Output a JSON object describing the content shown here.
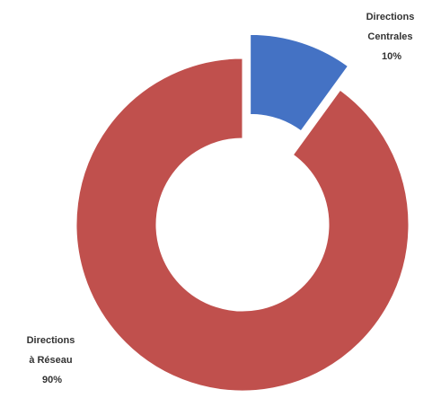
{
  "chart_data": {
    "type": "pie",
    "variant": "donut",
    "title": "",
    "legend": "none",
    "slices": [
      {
        "label_lines": [
          "Directions",
          "Centrales"
        ],
        "value": 10,
        "value_text": "10%",
        "color": "#4472C4",
        "exploded": true
      },
      {
        "label_lines": [
          "Directions",
          "à Réseau"
        ],
        "value": 90,
        "value_text": "90%",
        "color": "#C0504D",
        "exploded": false
      }
    ]
  }
}
